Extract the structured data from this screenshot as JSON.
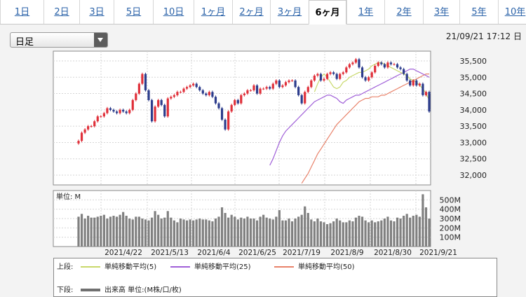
{
  "tabs": [
    {
      "label": "1日"
    },
    {
      "label": "2日"
    },
    {
      "label": "3日"
    },
    {
      "label": "5日"
    },
    {
      "label": "10日"
    },
    {
      "label": "1ヶ月"
    },
    {
      "label": "2ヶ月"
    },
    {
      "label": "3ヶ月"
    },
    {
      "label": "6ヶ月",
      "active": true
    },
    {
      "label": "1年"
    },
    {
      "label": "2年"
    },
    {
      "label": "3年"
    },
    {
      "label": "5年"
    },
    {
      "label": "10年"
    }
  ],
  "period_select": {
    "selected": "日足"
  },
  "timestamp": "21/09/21 17:12 日",
  "legend": {
    "upper_label": "上段:",
    "lower_label": "下段:",
    "ma5": "単純移動平均(5)",
    "ma25": "単純移動平均(25)",
    "ma50": "単純移動平均(50)",
    "volume": "出来高 単位:(M株/口/枚)",
    "colors": {
      "ma5": "#c8d86a",
      "ma25": "#a060d8",
      "ma50": "#e8826a",
      "up": "#e0303a",
      "down": "#2c3c8c",
      "volume": "#808080"
    }
  },
  "chart_data": {
    "type": "candlestick+volume",
    "price_axis": {
      "ticks": [
        "35,500",
        "35,000",
        "34,500",
        "34,000",
        "33,500",
        "33,000",
        "32,500",
        "32,000"
      ],
      "ylim": [
        31700,
        35800
      ]
    },
    "volume_axis": {
      "unit_label": "単位: M",
      "ticks": [
        "500M",
        "400M",
        "300M",
        "200M",
        "100M"
      ],
      "ylim": [
        0,
        600
      ]
    },
    "x_labels": [
      "2021/4/22",
      "2021/5/13",
      "2021/6/4",
      "2021/6/25",
      "2021/7/19",
      "2021/8/9",
      "2021/8/30",
      "2021/9/21"
    ],
    "close": [
      33050,
      33300,
      33400,
      33500,
      33500,
      33650,
      33800,
      33800,
      33900,
      34050,
      34000,
      33950,
      33900,
      34000,
      33950,
      33900,
      34000,
      34300,
      34500,
      34800,
      35100,
      34600,
      34300,
      33650,
      34100,
      34300,
      34150,
      33800,
      34350,
      34400,
      34450,
      34550,
      34550,
      34650,
      34700,
      34750,
      34800,
      34700,
      34600,
      34500,
      34450,
      34550,
      34400,
      34200,
      34050,
      33700,
      33400,
      33950,
      34150,
      34300,
      34200,
      34450,
      34500,
      34600,
      34600,
      34750,
      34500,
      34650,
      34650,
      34700,
      34650,
      34800,
      34900,
      34700,
      34750,
      34850,
      34900,
      34900,
      34700,
      34450,
      34200,
      34550,
      34700,
      34900,
      35050,
      35100,
      34900,
      34950,
      35100,
      35150,
      35100,
      34950,
      35100,
      35150,
      35300,
      35400,
      35450,
      35550,
      35300,
      35000,
      34900,
      35000,
      35150,
      35350,
      35450,
      35400,
      35300,
      35450,
      35400,
      35400,
      35300,
      35250,
      35100,
      34900,
      34750,
      34900,
      34750,
      34800,
      34450,
      34550,
      33950
    ],
    "volume": [
      320,
      350,
      300,
      330,
      310,
      310,
      320,
      330,
      340,
      300,
      320,
      330,
      320,
      340,
      370,
      330,
      300,
      290,
      320,
      320,
      300,
      290,
      280,
      310,
      380,
      340,
      300,
      310,
      380,
      310,
      280,
      260,
      300,
      290,
      280,
      290,
      280,
      290,
      300,
      290,
      290,
      280,
      270,
      300,
      320,
      420,
      360,
      310,
      340,
      320,
      290,
      310,
      300,
      320,
      300,
      300,
      280,
      320,
      340,
      310,
      300,
      290,
      320,
      390,
      280,
      280,
      300,
      270,
      300,
      320,
      340,
      430,
      360,
      290,
      270,
      300,
      270,
      260,
      240,
      250,
      270,
      300,
      280,
      260,
      260,
      280,
      270,
      310,
      330,
      320,
      280,
      260,
      280,
      260,
      270,
      280,
      300,
      320,
      280,
      270,
      310,
      300,
      330,
      350,
      310,
      330,
      340,
      320,
      560,
      420,
      300
    ],
    "ma5": [
      34550,
      34800,
      35000,
      35100,
      35000,
      34850,
      34700,
      34650,
      34700,
      34850,
      34900,
      35000,
      35050,
      35100,
      35150,
      35150,
      35200,
      35250,
      35350,
      35400,
      35450,
      35450,
      35400,
      35350,
      35300,
      35250,
      35200,
      35150,
      35100,
      35050,
      34950,
      34900,
      34850,
      34750,
      34650,
      34500,
      34300
    ],
    "ma25": [
      32300,
      32500,
      32750,
      33000,
      33200,
      33350,
      33450,
      33550,
      33650,
      33750,
      33850,
      33950,
      34050,
      34150,
      34250,
      34300,
      34350,
      34400,
      34450,
      34450,
      34400,
      34350,
      34250,
      34200,
      34300,
      34350,
      34400,
      34450,
      34450,
      34500,
      34550,
      34600,
      34650,
      34700,
      34750,
      34800,
      34850,
      34900,
      34950,
      35000,
      35050,
      35100,
      35150,
      35200,
      35250,
      35250,
      35200,
      35150,
      35100,
      35050,
      35000
    ],
    "ma50": [
      31750,
      31900,
      32050,
      32250,
      32450,
      32650,
      32800,
      32950,
      33100,
      33250,
      33400,
      33550,
      33650,
      33750,
      33850,
      33950,
      34050,
      34150,
      34250,
      34300,
      34350,
      34350,
      34400,
      34400,
      34400,
      34450,
      34450,
      34500,
      34550,
      34600,
      34650,
      34700,
      34750,
      34800,
      34850,
      34900,
      34950,
      35000,
      35050,
      35100,
      35100
    ]
  }
}
